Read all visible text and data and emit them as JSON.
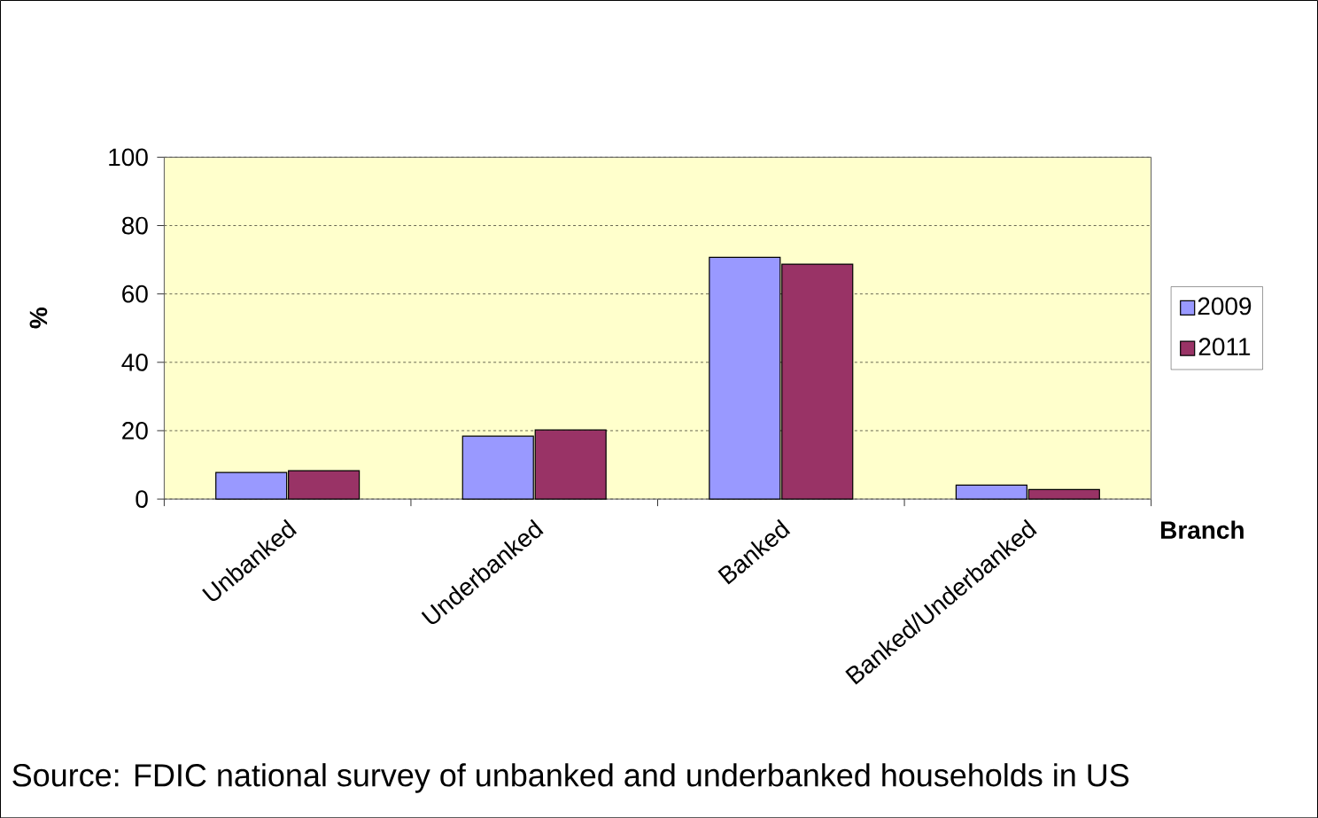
{
  "chart_data": {
    "type": "bar",
    "xlabel": "Branch",
    "ylabel": "%",
    "categories": [
      "Unbanked",
      "Underbanked",
      "Banked",
      "Banked/Underbanked"
    ],
    "series": [
      {
        "name": "2009",
        "color": "#9999ff",
        "values": [
          7.8,
          18.4,
          70.7,
          4.1
        ]
      },
      {
        "name": "2011",
        "color": "#993366",
        "values": [
          8.3,
          20.2,
          68.7,
          2.8
        ]
      }
    ],
    "ylim": [
      0,
      100
    ],
    "yticks": [
      0,
      20,
      40,
      60,
      80,
      100
    ],
    "grid": "y",
    "legend": "right",
    "annotations": [
      "Source: FDIC national survey of unbanked and underbanked households in US"
    ]
  }
}
